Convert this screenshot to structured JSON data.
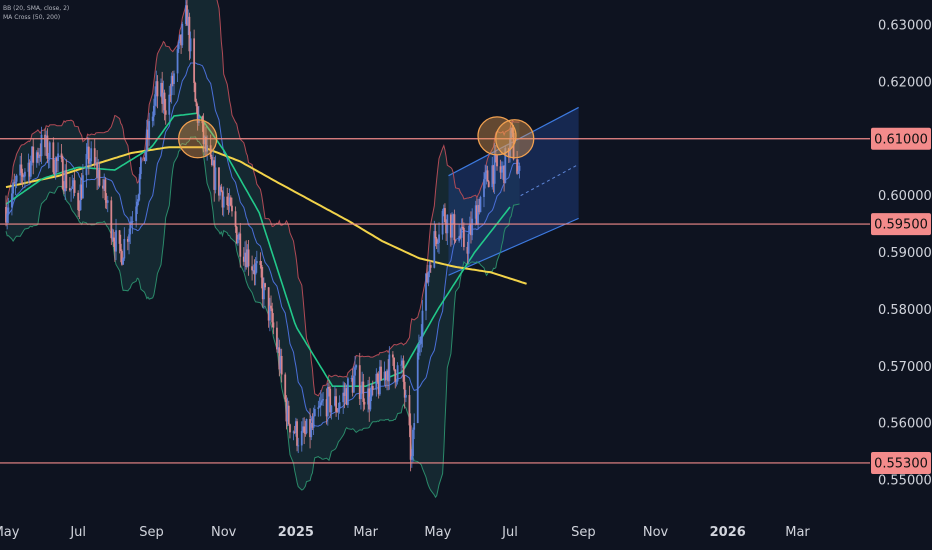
{
  "legend": {
    "bb": "BB (20, SMA, close, 2)",
    "ma": "MA Cross (50, 200)"
  },
  "colors": {
    "background": "#0e1320",
    "candle_up": "#5b7fd6",
    "candle_down": "#d8868c",
    "level": "#f08a8a",
    "level_label_bg": "#f38b8b",
    "bb_upper": "#b04a55",
    "bb_lower": "#2a8a6a",
    "bb_basis": "#4a6fd8",
    "bb_fill": "#1b3a40",
    "ma50": "#22c98a",
    "ma200": "#f2d34a",
    "channel_fill": "#1e3a78",
    "channel_line": "#3d7ae0",
    "circle": "#f0a050"
  },
  "chart_data": {
    "type": "candlestick",
    "symbol_period": "daily",
    "x_range": [
      "2024-05-01",
      "2026-03-20"
    ],
    "y_range": [
      0.549,
      0.6335
    ],
    "y_ticks": [
      "0.63000",
      "0.62000",
      "0.61000",
      "0.60000",
      "0.59000",
      "0.58000",
      "0.57000",
      "0.56000",
      "0.55000"
    ],
    "x_ticks": [
      {
        "label": "May",
        "date": "2024-05-01",
        "bold": false
      },
      {
        "label": "Jul",
        "date": "2024-07-01",
        "bold": false
      },
      {
        "label": "Sep",
        "date": "2024-09-01",
        "bold": false
      },
      {
        "label": "Nov",
        "date": "2024-11-01",
        "bold": false
      },
      {
        "label": "2025",
        "date": "2025-01-01",
        "bold": true
      },
      {
        "label": "Mar",
        "date": "2025-03-01",
        "bold": false
      },
      {
        "label": "May",
        "date": "2025-05-01",
        "bold": false
      },
      {
        "label": "Jul",
        "date": "2025-07-01",
        "bold": false
      },
      {
        "label": "Sep",
        "date": "2025-09-01",
        "bold": false
      },
      {
        "label": "Nov",
        "date": "2025-11-01",
        "bold": false
      },
      {
        "label": "2026",
        "date": "2026-01-01",
        "bold": true
      },
      {
        "label": "Mar",
        "date": "2026-03-01",
        "bold": false
      }
    ],
    "horizontal_levels": [
      {
        "value": 0.61,
        "label": "0.61000"
      },
      {
        "value": 0.595,
        "label": "0.59500"
      },
      {
        "value": 0.553,
        "label": "0.55300"
      }
    ],
    "close_path": [
      [
        "2024-05-01",
        0.598
      ],
      [
        "2024-05-15",
        0.604
      ],
      [
        "2024-06-01",
        0.609
      ],
      [
        "2024-06-15",
        0.605
      ],
      [
        "2024-07-01",
        0.599
      ],
      [
        "2024-07-10",
        0.607
      ],
      [
        "2024-07-20",
        0.603
      ],
      [
        "2024-08-05",
        0.589
      ],
      [
        "2024-08-15",
        0.596
      ],
      [
        "2024-08-25",
        0.606
      ],
      [
        "2024-09-05",
        0.618
      ],
      [
        "2024-09-15",
        0.616
      ],
      [
        "2024-09-25",
        0.626
      ],
      [
        "2024-10-01",
        0.632
      ],
      [
        "2024-10-08",
        0.616
      ],
      [
        "2024-10-20",
        0.605
      ],
      [
        "2024-11-01",
        0.6
      ],
      [
        "2024-11-15",
        0.592
      ],
      [
        "2024-12-01",
        0.586
      ],
      [
        "2024-12-15",
        0.575
      ],
      [
        "2024-12-25",
        0.561
      ],
      [
        "2025-01-05",
        0.557
      ],
      [
        "2025-01-15",
        0.559
      ],
      [
        "2025-01-25",
        0.564
      ],
      [
        "2025-02-05",
        0.563
      ],
      [
        "2025-02-20",
        0.568
      ],
      [
        "2025-03-05",
        0.564
      ],
      [
        "2025-03-20",
        0.57
      ],
      [
        "2025-04-01",
        0.569
      ],
      [
        "2025-04-09",
        0.553
      ],
      [
        "2025-04-15",
        0.575
      ],
      [
        "2025-04-25",
        0.59
      ],
      [
        "2025-05-05",
        0.597
      ],
      [
        "2025-05-15",
        0.594
      ],
      [
        "2025-05-25",
        0.591
      ],
      [
        "2025-06-05",
        0.599
      ],
      [
        "2025-06-15",
        0.605
      ],
      [
        "2025-06-25",
        0.604
      ],
      [
        "2025-07-02",
        0.61
      ],
      [
        "2025-07-09",
        0.603
      ]
    ],
    "ma200": [
      [
        "2024-05-01",
        0.6015
      ],
      [
        "2024-06-15",
        0.6035
      ],
      [
        "2024-07-15",
        0.6055
      ],
      [
        "2024-08-15",
        0.6075
      ],
      [
        "2024-09-15",
        0.6085
      ],
      [
        "2024-10-15",
        0.6085
      ],
      [
        "2024-11-15",
        0.606
      ],
      [
        "2024-12-15",
        0.6025
      ],
      [
        "2025-01-15",
        0.599
      ],
      [
        "2025-02-15",
        0.5955
      ],
      [
        "2025-03-15",
        0.592
      ],
      [
        "2025-04-15",
        0.589
      ],
      [
        "2025-05-15",
        0.5875
      ],
      [
        "2025-06-15",
        0.5865
      ],
      [
        "2025-07-15",
        0.5845
      ]
    ],
    "ma50": [
      [
        "2024-05-01",
        0.5985
      ],
      [
        "2024-06-01",
        0.603
      ],
      [
        "2024-07-01",
        0.605
      ],
      [
        "2024-08-01",
        0.6045
      ],
      [
        "2024-09-01",
        0.6085
      ],
      [
        "2024-09-20",
        0.614
      ],
      [
        "2024-10-10",
        0.6145
      ],
      [
        "2024-11-01",
        0.608
      ],
      [
        "2024-12-01",
        0.597
      ],
      [
        "2025-01-01",
        0.577
      ],
      [
        "2025-02-01",
        0.5665
      ],
      [
        "2025-03-01",
        0.5665
      ],
      [
        "2025-04-01",
        0.569
      ],
      [
        "2025-05-01",
        0.58
      ],
      [
        "2025-06-01",
        0.59
      ],
      [
        "2025-07-01",
        0.598
      ]
    ],
    "channel": {
      "upper": [
        [
          "2025-05-10",
          0.6035
        ],
        [
          "2025-08-28",
          0.6155
        ]
      ],
      "lower": [
        [
          "2025-05-10",
          0.586
        ],
        [
          "2025-08-28",
          0.596
        ]
      ],
      "mid": [
        [
          "2025-07-10",
          0.6
        ],
        [
          "2025-08-28",
          0.6055
        ]
      ]
    },
    "circles": [
      {
        "date": "2024-10-10",
        "value": 0.61
      },
      {
        "date": "2025-06-20",
        "value": 0.6105
      },
      {
        "date": "2025-07-05",
        "value": 0.61
      }
    ]
  }
}
